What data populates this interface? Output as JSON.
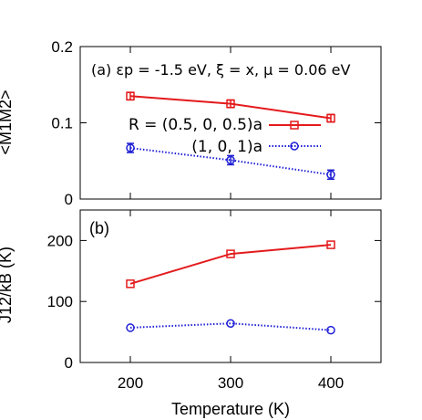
{
  "chart_data": [
    {
      "type": "line",
      "panel_label": "(a)",
      "annotation": "(a) εp = -1.5 eV, ξ = x, μ = 0.06 eV",
      "ylabel": "<M1M2>",
      "xlabel": "",
      "xlim": [
        150,
        450
      ],
      "ylim": [
        0,
        0.2
      ],
      "y_ticks": [
        "0",
        "0.1",
        "0.2"
      ],
      "legend_position": "center-right",
      "x": [
        200,
        300,
        400
      ],
      "series": [
        {
          "name": "R = (0.5, 0, 0.5)a",
          "color": "#e41a1c",
          "marker": "square",
          "line": "solid",
          "values": [
            0.135,
            0.125,
            0.106
          ],
          "errors": [
            0.005,
            0.005,
            0.005
          ]
        },
        {
          "name": "(1, 0, 1)a",
          "color": "#1f1fd6",
          "marker": "circle",
          "line": "dotted",
          "values": [
            0.067,
            0.051,
            0.032
          ],
          "errors": [
            0.006,
            0.006,
            0.006
          ]
        }
      ]
    },
    {
      "type": "line",
      "panel_label": "(b)",
      "annotation": "(b)",
      "ylabel": "J12/kB (K)",
      "xlabel": "Temperature (K)",
      "xlim": [
        150,
        450
      ],
      "ylim": [
        0,
        250
      ],
      "y_ticks": [
        "0",
        "100",
        "200"
      ],
      "x_ticks": [
        "200",
        "300",
        "400"
      ],
      "x": [
        200,
        300,
        400
      ],
      "series": [
        {
          "name": "R = (0.5, 0, 0.5)a",
          "color": "#e41a1c",
          "marker": "square",
          "line": "solid",
          "values": [
            129,
            178,
            193
          ]
        },
        {
          "name": "(1, 0, 1)a",
          "color": "#1f1fd6",
          "marker": "circle",
          "line": "dotted",
          "values": [
            57,
            64,
            53
          ]
        }
      ]
    }
  ]
}
